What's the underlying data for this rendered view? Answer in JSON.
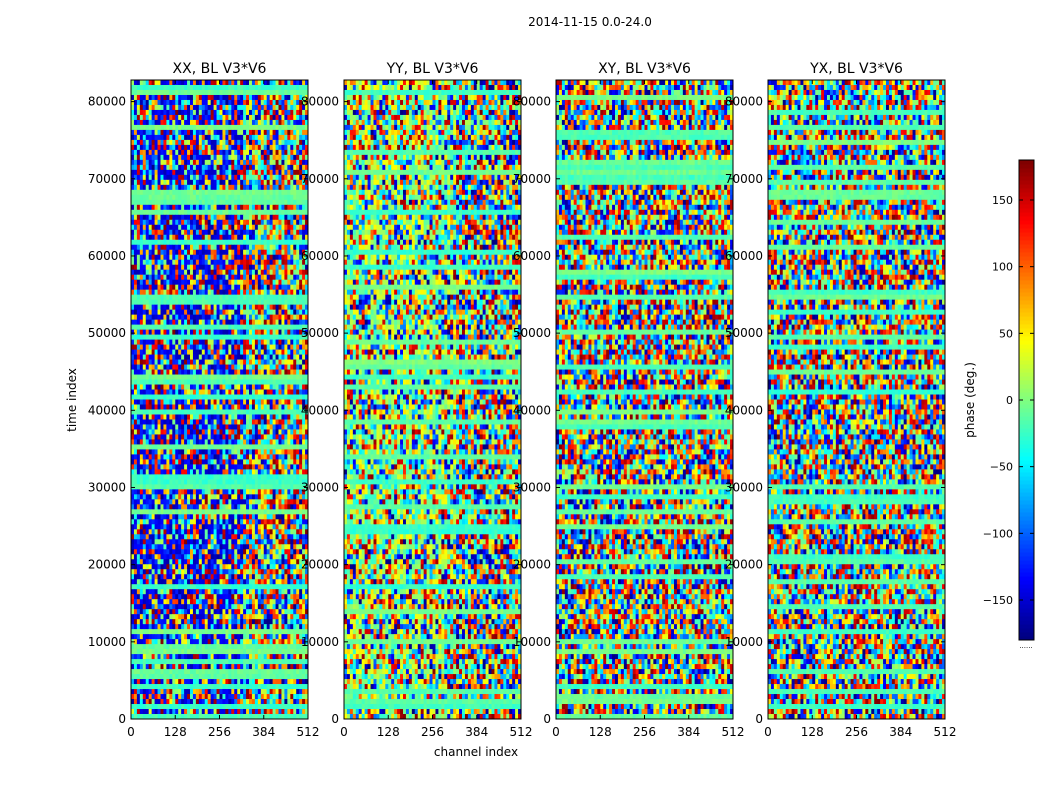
{
  "figure_title": "2014-11-15 0.0-24.0",
  "chart_data": {
    "type": "heatmap",
    "suptitle": "2014-11-15 0.0-24.0",
    "xlabel": "channel index",
    "ylabel": "time index",
    "xlim": [
      0,
      512
    ],
    "ylim": [
      0,
      82800
    ],
    "xticks": [
      0,
      128,
      256,
      384,
      512
    ],
    "yticks": [
      0,
      10000,
      20000,
      30000,
      40000,
      50000,
      60000,
      70000,
      80000
    ],
    "colormap": "jet",
    "colorbar": {
      "label": "phase (deg.)",
      "range": [
        -180,
        180
      ],
      "ticks": [
        -150,
        -100,
        -50,
        0,
        50,
        100,
        150
      ],
      "tick_labels": [
        "−150",
        "−100",
        "−50",
        "0",
        "50",
        "100",
        "150"
      ],
      "under_label": "......"
    },
    "panels": [
      {
        "title": "XX, BL V3*V6",
        "polarization": "XX"
      },
      {
        "title": "YY, BL V3*V6",
        "polarization": "YY"
      },
      {
        "title": "XY, BL V3*V6",
        "polarization": "XY"
      },
      {
        "title": "YX, BL V3*V6",
        "polarization": "YX"
      }
    ]
  }
}
